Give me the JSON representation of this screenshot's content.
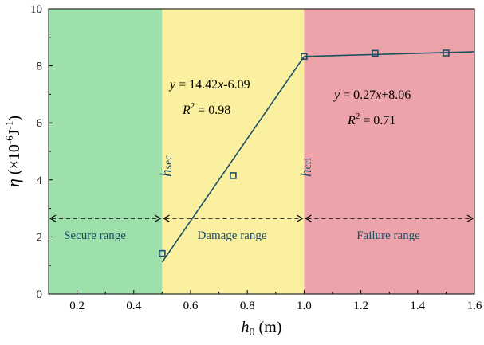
{
  "chart_data": {
    "type": "scatter",
    "xlabel": "h0 (m)",
    "xlabel_parts": {
      "var": "h",
      "sub": "0",
      "unit": " (m)"
    },
    "ylabel": "η (×10⁻⁶J⁻¹)",
    "ylabel_parts": {
      "var": "η",
      "pre": " (×10",
      "sup": "-6",
      "mid": "J",
      "sup2": "-1",
      "post": ")"
    },
    "xlim": [
      0.1,
      1.6
    ],
    "ylim": [
      0,
      10
    ],
    "xticks": [
      0.2,
      0.4,
      0.6,
      0.8,
      1.0,
      1.2,
      1.4,
      1.6
    ],
    "xtick_labels": [
      "0.2",
      "0.4",
      "0.6",
      "0.8",
      "1.0",
      "1.2",
      "1.4",
      "1.6"
    ],
    "yticks": [
      0,
      2,
      4,
      6,
      8,
      10
    ],
    "ytick_labels": [
      "0",
      "2",
      "4",
      "6",
      "8",
      "10"
    ],
    "grid": false,
    "regions": [
      {
        "label": "Secure range",
        "x0": 0.1,
        "x1": 0.5,
        "color": "#9ee0ac"
      },
      {
        "label": "Damage range",
        "x0": 0.5,
        "x1": 1.0,
        "color": "#faf0a0"
      },
      {
        "label": "Failure range",
        "x0": 1.0,
        "x1": 1.6,
        "color": "#eca4aa"
      }
    ],
    "boundaries": [
      {
        "x": 0.5,
        "label_var": "h",
        "label_sub": "sec"
      },
      {
        "x": 1.0,
        "label_var": "h",
        "label_sub": "cri"
      }
    ],
    "dashed_arrow_y": 2.65,
    "points": [
      {
        "x": 0.5,
        "y": 1.42
      },
      {
        "x": 0.75,
        "y": 4.15
      },
      {
        "x": 1.0,
        "y": 8.33
      },
      {
        "x": 1.25,
        "y": 8.44
      },
      {
        "x": 1.5,
        "y": 8.45
      }
    ],
    "fits": [
      {
        "slope": 14.42,
        "intercept": -6.09,
        "x_range": [
          0.5,
          1.0
        ],
        "equation": {
          "y": "y",
          "eq": " = 14.42",
          "x": "x",
          "rest": "-6.09"
        },
        "r2": {
          "R": "R",
          "sup": "2",
          "rest": " = 0.98"
        }
      },
      {
        "slope": 0.27,
        "intercept": 8.06,
        "x_range": [
          1.0,
          1.6
        ],
        "equation": {
          "y": "y",
          "eq": " = 0.27",
          "x": "x",
          "rest": "+8.06"
        },
        "r2": {
          "R": "R",
          "sup": "2",
          "rest": " = 0.71"
        }
      }
    ],
    "colors": {
      "line": "#1d4f63",
      "marker": "#1d4f63",
      "region_text": "#1d4f63"
    }
  }
}
